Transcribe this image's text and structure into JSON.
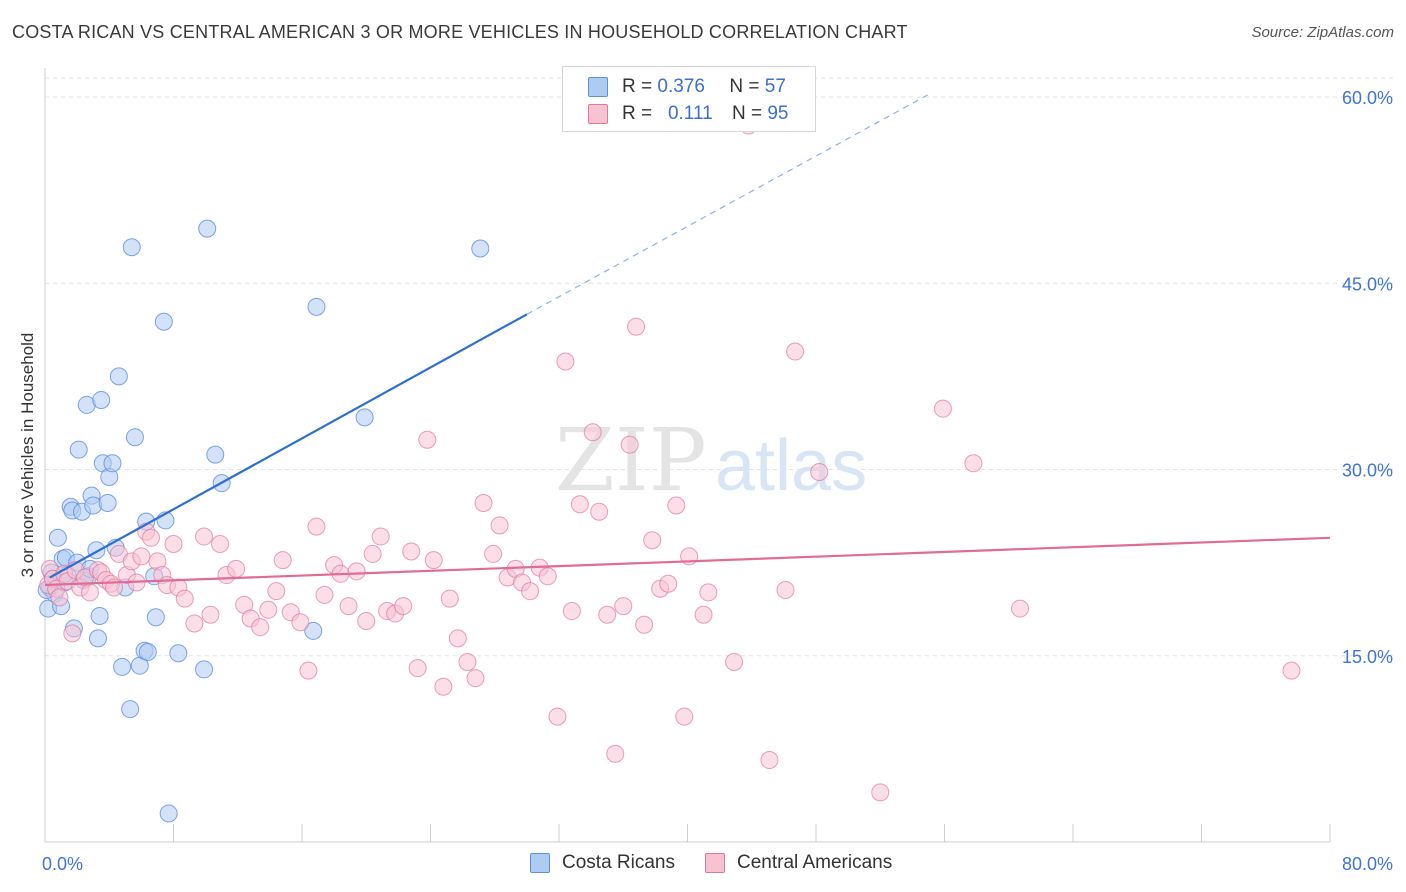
{
  "title": "COSTA RICAN VS CENTRAL AMERICAN 3 OR MORE VEHICLES IN HOUSEHOLD CORRELATION CHART",
  "source": "Source: ZipAtlas.com",
  "watermark": {
    "zip": "ZIP",
    "atlas": "atlas"
  },
  "legend": {
    "rows": [
      {
        "r_label": "R =",
        "r_value": "0.376",
        "n_label": "N =",
        "n_value": "57",
        "color": "#5b8fe0",
        "fill": "#aecbf2"
      },
      {
        "r_label": "R =",
        "r_value": "0.111",
        "n_label": "N =",
        "n_value": "95",
        "color": "#e0789b",
        "fill": "#f7c3d3"
      }
    ]
  },
  "bottom_legend": [
    {
      "label": "Costa Ricans",
      "fill": "#aecbf2",
      "stroke": "#5b8fe0"
    },
    {
      "label": "Central Americans",
      "fill": "#f7c3d3",
      "stroke": "#e0789b"
    }
  ],
  "chart_data": {
    "type": "scatter",
    "title": "COSTA RICAN VS CENTRAL AMERICAN 3 OR MORE VEHICLES IN HOUSEHOLD CORRELATION CHART",
    "xlabel": "",
    "ylabel": "3 or more Vehicles in Household",
    "xlim": [
      0,
      80
    ],
    "ylim": [
      0,
      62
    ],
    "x_tick_labels": [
      {
        "value": 0,
        "label": "0.0%"
      },
      {
        "value": 80,
        "label": "80.0%"
      }
    ],
    "y_tick_labels": [
      {
        "value": 15,
        "label": "15.0%"
      },
      {
        "value": 30,
        "label": "30.0%"
      },
      {
        "value": 45,
        "label": "45.0%"
      },
      {
        "value": 60,
        "label": "60.0%"
      }
    ],
    "grid": true,
    "legend_position": "top-center",
    "series": [
      {
        "name": "Costa Ricans",
        "color": "#5b8fe0",
        "fill": "#aecbf2",
        "trend": {
          "x0": 0.3,
          "y0": 21.3,
          "x1": 30.0,
          "y1": 42.5,
          "dash_to_x": 55.0,
          "dash_to_y": 60.2
        },
        "points": [
          [
            0.2,
            18.8
          ],
          [
            0.3,
            20.5
          ],
          [
            0.4,
            21.7
          ],
          [
            0.5,
            21.2
          ],
          [
            0.6,
            20.0
          ],
          [
            0.8,
            24.5
          ],
          [
            1.0,
            19.0
          ],
          [
            1.1,
            22.8
          ],
          [
            1.2,
            20.9
          ],
          [
            1.3,
            22.9
          ],
          [
            1.4,
            21.5
          ],
          [
            1.6,
            27.0
          ],
          [
            1.7,
            26.7
          ],
          [
            1.8,
            17.2
          ],
          [
            2.0,
            22.5
          ],
          [
            2.1,
            31.6
          ],
          [
            2.3,
            26.6
          ],
          [
            2.4,
            21.1
          ],
          [
            2.6,
            35.2
          ],
          [
            2.7,
            21.4
          ],
          [
            2.8,
            22.0
          ],
          [
            2.9,
            27.9
          ],
          [
            3.0,
            27.1
          ],
          [
            3.2,
            23.5
          ],
          [
            3.3,
            16.4
          ],
          [
            3.4,
            18.2
          ],
          [
            3.5,
            35.6
          ],
          [
            3.6,
            30.5
          ],
          [
            3.9,
            27.3
          ],
          [
            4.0,
            29.4
          ],
          [
            4.2,
            30.5
          ],
          [
            4.4,
            23.7
          ],
          [
            4.6,
            37.5
          ],
          [
            4.8,
            14.1
          ],
          [
            5.0,
            20.5
          ],
          [
            5.3,
            10.7
          ],
          [
            5.4,
            47.9
          ],
          [
            5.6,
            32.6
          ],
          [
            5.9,
            14.2
          ],
          [
            6.2,
            15.4
          ],
          [
            6.3,
            25.8
          ],
          [
            6.4,
            15.3
          ],
          [
            6.8,
            21.4
          ],
          [
            6.9,
            18.1
          ],
          [
            7.4,
            41.9
          ],
          [
            7.5,
            25.9
          ],
          [
            7.7,
            2.3
          ],
          [
            8.3,
            15.2
          ],
          [
            9.9,
            13.9
          ],
          [
            10.1,
            49.4
          ],
          [
            10.6,
            31.2
          ],
          [
            11.0,
            28.9
          ],
          [
            16.7,
            17.0
          ],
          [
            16.9,
            43.1
          ],
          [
            19.9,
            34.2
          ],
          [
            27.1,
            47.8
          ],
          [
            0.1,
            20.3
          ]
        ]
      },
      {
        "name": "Central Americans",
        "color": "#e0789b",
        "fill": "#f7c3d3",
        "trend": {
          "x0": 0.0,
          "y0": 20.7,
          "x1": 80.0,
          "y1": 24.5
        },
        "points": [
          [
            0.2,
            20.7
          ],
          [
            0.3,
            22.0
          ],
          [
            0.5,
            21.2
          ],
          [
            0.7,
            20.4
          ],
          [
            0.9,
            19.7
          ],
          [
            1.2,
            21.6
          ],
          [
            1.4,
            21.0
          ],
          [
            1.7,
            16.8
          ],
          [
            1.9,
            21.9
          ],
          [
            2.2,
            20.5
          ],
          [
            2.5,
            21.3
          ],
          [
            2.8,
            20.1
          ],
          [
            3.3,
            21.9
          ],
          [
            3.5,
            21.7
          ],
          [
            3.8,
            21.1
          ],
          [
            4.1,
            20.8
          ],
          [
            4.3,
            20.5
          ],
          [
            4.6,
            23.2
          ],
          [
            5.1,
            21.5
          ],
          [
            5.4,
            22.6
          ],
          [
            5.7,
            20.9
          ],
          [
            6.0,
            23.0
          ],
          [
            6.3,
            25.0
          ],
          [
            6.6,
            24.5
          ],
          [
            7.0,
            22.6
          ],
          [
            7.3,
            21.5
          ],
          [
            7.6,
            20.7
          ],
          [
            8.0,
            24.0
          ],
          [
            8.3,
            20.5
          ],
          [
            8.7,
            19.6
          ],
          [
            9.3,
            17.6
          ],
          [
            9.9,
            24.6
          ],
          [
            10.3,
            18.3
          ],
          [
            10.9,
            24.0
          ],
          [
            11.3,
            21.5
          ],
          [
            11.9,
            22.0
          ],
          [
            12.4,
            19.1
          ],
          [
            12.8,
            18.0
          ],
          [
            13.4,
            17.3
          ],
          [
            13.9,
            18.7
          ],
          [
            14.4,
            20.2
          ],
          [
            14.8,
            22.7
          ],
          [
            15.3,
            18.5
          ],
          [
            15.9,
            17.7
          ],
          [
            16.4,
            13.8
          ],
          [
            16.9,
            25.4
          ],
          [
            17.4,
            19.9
          ],
          [
            18.0,
            22.3
          ],
          [
            18.4,
            21.6
          ],
          [
            18.9,
            19.0
          ],
          [
            19.4,
            21.8
          ],
          [
            20.0,
            17.8
          ],
          [
            20.4,
            23.2
          ],
          [
            20.9,
            24.6
          ],
          [
            21.3,
            18.6
          ],
          [
            21.8,
            18.4
          ],
          [
            22.3,
            19.0
          ],
          [
            22.8,
            23.4
          ],
          [
            23.2,
            14.0
          ],
          [
            23.8,
            32.4
          ],
          [
            24.2,
            22.7
          ],
          [
            24.8,
            12.5
          ],
          [
            25.2,
            19.6
          ],
          [
            25.7,
            16.4
          ],
          [
            26.3,
            14.5
          ],
          [
            26.8,
            13.2
          ],
          [
            27.3,
            27.3
          ],
          [
            27.9,
            23.2
          ],
          [
            28.3,
            25.5
          ],
          [
            28.8,
            21.3
          ],
          [
            29.3,
            22.0
          ],
          [
            29.7,
            20.9
          ],
          [
            30.2,
            20.2
          ],
          [
            30.8,
            22.1
          ],
          [
            31.3,
            21.4
          ],
          [
            31.9,
            10.1
          ],
          [
            32.4,
            38.7
          ],
          [
            32.8,
            18.6
          ],
          [
            33.3,
            27.2
          ],
          [
            34.1,
            33.0
          ],
          [
            34.5,
            26.6
          ],
          [
            35.0,
            18.3
          ],
          [
            35.5,
            7.1
          ],
          [
            36.0,
            19.0
          ],
          [
            36.4,
            32.0
          ],
          [
            36.8,
            41.5
          ],
          [
            37.3,
            17.5
          ],
          [
            37.8,
            24.3
          ],
          [
            38.3,
            20.4
          ],
          [
            38.8,
            20.8
          ],
          [
            39.3,
            27.1
          ],
          [
            39.8,
            10.1
          ],
          [
            40.1,
            23.0
          ],
          [
            41.0,
            18.3
          ],
          [
            41.3,
            20.1
          ]
        ]
      }
    ],
    "extra_points_central": [
      [
        42.9,
        14.5
      ],
      [
        43.8,
        57.7
      ],
      [
        45.1,
        6.6
      ],
      [
        46.1,
        20.3
      ],
      [
        46.7,
        39.5
      ],
      [
        48.2,
        29.8
      ],
      [
        52.0,
        4.0
      ],
      [
        55.9,
        34.9
      ],
      [
        57.8,
        30.5
      ],
      [
        60.7,
        18.8
      ],
      [
        77.6,
        13.8
      ]
    ]
  }
}
